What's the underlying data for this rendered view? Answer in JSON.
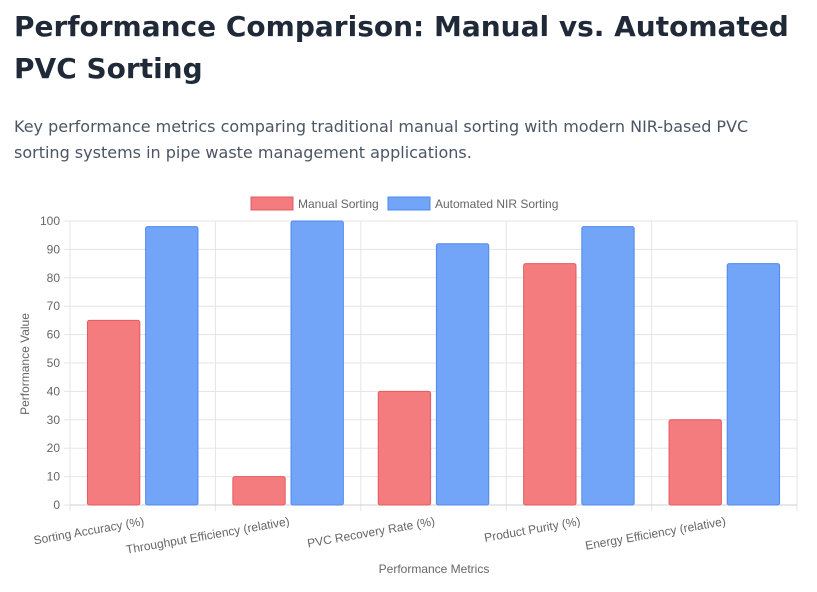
{
  "page": {
    "title": "Performance Comparison: Manual vs. Automated PVC Sorting",
    "subtitle": "Key performance metrics comparing traditional manual sorting with modern NIR-based PVC sorting systems in pipe waste management applications."
  },
  "chart_data": {
    "type": "bar",
    "title": "",
    "xlabel": "Performance Metrics",
    "ylabel": "Performance Value",
    "ylim": [
      0,
      100
    ],
    "yticks": [
      0,
      10,
      20,
      30,
      40,
      50,
      60,
      70,
      80,
      90,
      100
    ],
    "grid": true,
    "legend_position": "top",
    "categories": [
      "Sorting Accuracy (%)",
      "Throughput Efficiency (relative)",
      "PVC Recovery Rate (%)",
      "Product Purity (%)",
      "Energy Efficiency (relative)"
    ],
    "series": [
      {
        "name": "Manual Sorting",
        "values": [
          65,
          10,
          40,
          85,
          30
        ],
        "fill": "#f47c7e",
        "stroke": "#e35a5f"
      },
      {
        "name": "Automated NIR Sorting",
        "values": [
          98,
          100,
          92,
          98,
          85
        ],
        "fill": "#72a5f7",
        "stroke": "#4f89ee"
      }
    ]
  }
}
